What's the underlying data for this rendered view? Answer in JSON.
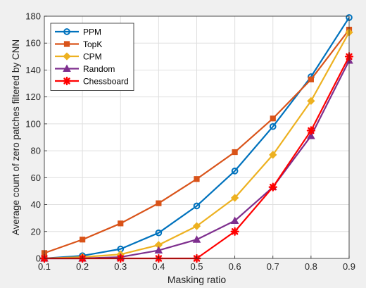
{
  "chart_data": {
    "type": "line",
    "title": "",
    "xlabel": "Masking ratio",
    "ylabel": "Average count of zero patches filtered by CNN",
    "x": [
      0.1,
      0.2,
      0.3,
      0.4,
      0.5,
      0.6,
      0.7,
      0.8,
      0.9
    ],
    "x_ticks": [
      "0.1",
      "0.2",
      "0.3",
      "0.4",
      "0.5",
      "0.6",
      "0.7",
      "0.8",
      "0.9"
    ],
    "xlim": [
      0.1,
      0.9
    ],
    "ylim": [
      0,
      180
    ],
    "y_ticks": [
      0,
      20,
      40,
      60,
      80,
      100,
      120,
      140,
      160,
      180
    ],
    "grid": true,
    "legend_position": "top-left",
    "series": [
      {
        "name": "PPM",
        "color": "#0072bd",
        "marker": "circle",
        "values": [
          0,
          2,
          7,
          19,
          39,
          65,
          98,
          135,
          179
        ]
      },
      {
        "name": "TopK",
        "color": "#d95319",
        "marker": "square",
        "values": [
          4,
          14,
          26,
          41,
          59,
          79,
          104,
          133,
          170
        ]
      },
      {
        "name": "CPM",
        "color": "#edb120",
        "marker": "diamond",
        "values": [
          0,
          1,
          3,
          10,
          24,
          45,
          77,
          117,
          168
        ]
      },
      {
        "name": "Random",
        "color": "#7e2f8e",
        "marker": "triangle",
        "values": [
          0,
          0,
          1,
          6,
          14,
          28,
          53,
          91,
          147
        ]
      },
      {
        "name": "Chessboard",
        "color": "#ff0000",
        "marker": "star",
        "values": [
          0,
          0,
          0,
          0,
          0,
          20,
          53,
          95,
          150
        ]
      }
    ]
  }
}
